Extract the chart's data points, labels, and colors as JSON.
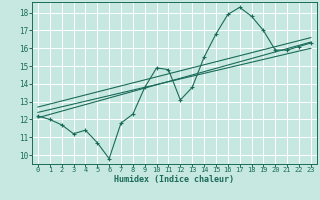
{
  "xlabel": "Humidex (Indice chaleur)",
  "ylabel": "",
  "bg_color": "#c6e8e0",
  "grid_color": "#ffffff",
  "line_color": "#1a6b5a",
  "xlim": [
    -0.5,
    23.5
  ],
  "ylim": [
    9.5,
    18.6
  ],
  "xticks": [
    0,
    1,
    2,
    3,
    4,
    5,
    6,
    7,
    8,
    9,
    10,
    11,
    12,
    13,
    14,
    15,
    16,
    17,
    18,
    19,
    20,
    21,
    22,
    23
  ],
  "yticks": [
    10,
    11,
    12,
    13,
    14,
    15,
    16,
    17,
    18
  ],
  "line1_x": [
    0,
    1,
    2,
    3,
    4,
    5,
    6,
    7,
    8,
    9,
    10,
    11,
    12,
    13,
    14,
    15,
    16,
    17,
    18,
    19,
    20,
    21,
    22,
    23
  ],
  "line1_y": [
    12.2,
    12.0,
    11.7,
    11.2,
    11.4,
    10.7,
    9.8,
    11.8,
    12.3,
    13.8,
    14.9,
    14.8,
    13.1,
    13.8,
    15.5,
    16.8,
    17.9,
    18.3,
    17.8,
    17.0,
    15.9,
    15.9,
    16.1,
    16.3
  ],
  "line2_x": [
    0,
    23
  ],
  "line2_y": [
    12.1,
    16.35
  ],
  "line3_x": [
    0,
    23
  ],
  "line3_y": [
    12.4,
    16.0
  ],
  "line4_x": [
    0,
    23
  ],
  "line4_y": [
    12.7,
    16.6
  ]
}
